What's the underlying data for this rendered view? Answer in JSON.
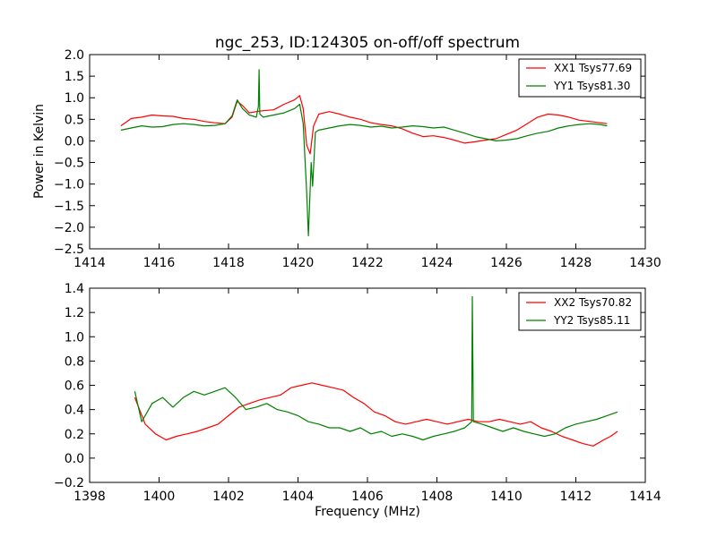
{
  "title": "ngc_253, ID:124305 on-off/off spectrum",
  "chart_data": [
    {
      "type": "line",
      "title": "ngc_253, ID:124305 on-off/off spectrum",
      "xlabel": "",
      "ylabel": "Power in Kelvin",
      "xlim": [
        1414,
        1430
      ],
      "ylim": [
        -2.5,
        2.0
      ],
      "xticks": [
        1414,
        1416,
        1418,
        1420,
        1422,
        1424,
        1426,
        1428,
        1430
      ],
      "yticks": [
        -2.5,
        -2.0,
        -1.5,
        -1.0,
        -0.5,
        0.0,
        0.5,
        1.0,
        1.5,
        2.0
      ],
      "ytick_labels": [
        "−2.5",
        "−2.0",
        "−1.5",
        "−1.0",
        "−0.5",
        "0.0",
        "0.5",
        "1.0",
        "1.5",
        "2.0"
      ],
      "legend": "top-right",
      "grid": false,
      "series": [
        {
          "name": "XX1 Tsys77.69",
          "color": "#ff0000",
          "points": [
            [
              1414.9,
              0.35
            ],
            [
              1415.2,
              0.52
            ],
            [
              1415.5,
              0.55
            ],
            [
              1415.8,
              0.6
            ],
            [
              1416.1,
              0.58
            ],
            [
              1416.4,
              0.57
            ],
            [
              1416.7,
              0.52
            ],
            [
              1417.0,
              0.5
            ],
            [
              1417.3,
              0.45
            ],
            [
              1417.6,
              0.42
            ],
            [
              1417.9,
              0.4
            ],
            [
              1418.1,
              0.55
            ],
            [
              1418.25,
              0.92
            ],
            [
              1418.4,
              0.82
            ],
            [
              1418.6,
              0.65
            ],
            [
              1418.8,
              0.68
            ],
            [
              1419.0,
              0.7
            ],
            [
              1419.3,
              0.72
            ],
            [
              1419.6,
              0.85
            ],
            [
              1419.9,
              0.95
            ],
            [
              1420.05,
              1.05
            ],
            [
              1420.15,
              0.75
            ],
            [
              1420.25,
              -0.1
            ],
            [
              1420.35,
              -0.3
            ],
            [
              1420.45,
              0.35
            ],
            [
              1420.6,
              0.62
            ],
            [
              1420.9,
              0.68
            ],
            [
              1421.2,
              0.62
            ],
            [
              1421.5,
              0.55
            ],
            [
              1421.8,
              0.5
            ],
            [
              1422.1,
              0.42
            ],
            [
              1422.4,
              0.38
            ],
            [
              1422.7,
              0.35
            ],
            [
              1423.0,
              0.28
            ],
            [
              1423.3,
              0.18
            ],
            [
              1423.6,
              0.1
            ],
            [
              1423.9,
              0.12
            ],
            [
              1424.2,
              0.08
            ],
            [
              1424.5,
              0.02
            ],
            [
              1424.8,
              -0.05
            ],
            [
              1425.1,
              -0.02
            ],
            [
              1425.4,
              0.02
            ],
            [
              1425.7,
              0.05
            ],
            [
              1426.0,
              0.15
            ],
            [
              1426.3,
              0.25
            ],
            [
              1426.6,
              0.4
            ],
            [
              1426.9,
              0.55
            ],
            [
              1427.2,
              0.62
            ],
            [
              1427.5,
              0.6
            ],
            [
              1427.8,
              0.55
            ],
            [
              1428.1,
              0.48
            ],
            [
              1428.4,
              0.45
            ],
            [
              1428.7,
              0.42
            ],
            [
              1428.9,
              0.4
            ]
          ]
        },
        {
          "name": "YY1 Tsys81.30",
          "color": "#008000",
          "points": [
            [
              1414.9,
              0.25
            ],
            [
              1415.2,
              0.3
            ],
            [
              1415.5,
              0.35
            ],
            [
              1415.8,
              0.32
            ],
            [
              1416.1,
              0.33
            ],
            [
              1416.4,
              0.38
            ],
            [
              1416.7,
              0.4
            ],
            [
              1417.0,
              0.38
            ],
            [
              1417.3,
              0.35
            ],
            [
              1417.6,
              0.36
            ],
            [
              1417.9,
              0.4
            ],
            [
              1418.1,
              0.58
            ],
            [
              1418.25,
              0.95
            ],
            [
              1418.4,
              0.75
            ],
            [
              1418.6,
              0.6
            ],
            [
              1418.8,
              0.55
            ],
            [
              1418.86,
              0.8
            ],
            [
              1418.88,
              1.65
            ],
            [
              1418.9,
              0.62
            ],
            [
              1419.0,
              0.55
            ],
            [
              1419.3,
              0.6
            ],
            [
              1419.6,
              0.65
            ],
            [
              1419.9,
              0.75
            ],
            [
              1420.05,
              0.85
            ],
            [
              1420.15,
              0.4
            ],
            [
              1420.25,
              -1.2
            ],
            [
              1420.3,
              -2.2
            ],
            [
              1420.38,
              -0.5
            ],
            [
              1420.42,
              -1.05
            ],
            [
              1420.5,
              0.2
            ],
            [
              1420.6,
              0.25
            ],
            [
              1420.9,
              0.3
            ],
            [
              1421.2,
              0.35
            ],
            [
              1421.5,
              0.38
            ],
            [
              1421.8,
              0.36
            ],
            [
              1422.1,
              0.32
            ],
            [
              1422.4,
              0.34
            ],
            [
              1422.7,
              0.3
            ],
            [
              1423.0,
              0.32
            ],
            [
              1423.3,
              0.35
            ],
            [
              1423.6,
              0.33
            ],
            [
              1423.9,
              0.3
            ],
            [
              1424.2,
              0.32
            ],
            [
              1424.5,
              0.25
            ],
            [
              1424.8,
              0.18
            ],
            [
              1425.1,
              0.1
            ],
            [
              1425.4,
              0.05
            ],
            [
              1425.7,
              0.0
            ],
            [
              1426.0,
              0.02
            ],
            [
              1426.3,
              0.05
            ],
            [
              1426.6,
              0.12
            ],
            [
              1426.9,
              0.18
            ],
            [
              1427.2,
              0.22
            ],
            [
              1427.5,
              0.3
            ],
            [
              1427.8,
              0.35
            ],
            [
              1428.1,
              0.38
            ],
            [
              1428.4,
              0.4
            ],
            [
              1428.7,
              0.38
            ],
            [
              1428.9,
              0.35
            ]
          ]
        }
      ]
    },
    {
      "type": "line",
      "title": "",
      "xlabel": "Frequency (MHz)",
      "ylabel": "",
      "xlim": [
        1398,
        1414
      ],
      "ylim": [
        -0.2,
        1.4
      ],
      "xticks": [
        1398,
        1400,
        1402,
        1404,
        1406,
        1408,
        1410,
        1412,
        1414
      ],
      "yticks": [
        -0.2,
        0.0,
        0.2,
        0.4,
        0.6,
        0.8,
        1.0,
        1.2,
        1.4
      ],
      "ytick_labels": [
        "−0.2",
        "0.0",
        "0.2",
        "0.4",
        "0.6",
        "0.8",
        "1.0",
        "1.2",
        "1.4"
      ],
      "legend": "top-right",
      "grid": false,
      "series": [
        {
          "name": "XX2 Tsys70.82",
          "color": "#ff0000",
          "points": [
            [
              1399.3,
              0.5
            ],
            [
              1399.6,
              0.28
            ],
            [
              1399.9,
              0.2
            ],
            [
              1400.2,
              0.15
            ],
            [
              1400.5,
              0.18
            ],
            [
              1400.8,
              0.2
            ],
            [
              1401.1,
              0.22
            ],
            [
              1401.4,
              0.25
            ],
            [
              1401.7,
              0.28
            ],
            [
              1402.0,
              0.35
            ],
            [
              1402.3,
              0.42
            ],
            [
              1402.6,
              0.45
            ],
            [
              1402.9,
              0.48
            ],
            [
              1403.2,
              0.5
            ],
            [
              1403.5,
              0.52
            ],
            [
              1403.8,
              0.58
            ],
            [
              1404.1,
              0.6
            ],
            [
              1404.4,
              0.62
            ],
            [
              1404.7,
              0.6
            ],
            [
              1405.0,
              0.58
            ],
            [
              1405.3,
              0.56
            ],
            [
              1405.6,
              0.5
            ],
            [
              1405.9,
              0.45
            ],
            [
              1406.2,
              0.38
            ],
            [
              1406.5,
              0.35
            ],
            [
              1406.8,
              0.3
            ],
            [
              1407.1,
              0.28
            ],
            [
              1407.4,
              0.3
            ],
            [
              1407.7,
              0.32
            ],
            [
              1408.0,
              0.3
            ],
            [
              1408.3,
              0.28
            ],
            [
              1408.6,
              0.3
            ],
            [
              1408.9,
              0.32
            ],
            [
              1409.2,
              0.3
            ],
            [
              1409.5,
              0.3
            ],
            [
              1409.8,
              0.32
            ],
            [
              1410.1,
              0.3
            ],
            [
              1410.4,
              0.28
            ],
            [
              1410.7,
              0.3
            ],
            [
              1411.0,
              0.25
            ],
            [
              1411.3,
              0.22
            ],
            [
              1411.6,
              0.18
            ],
            [
              1411.9,
              0.15
            ],
            [
              1412.2,
              0.12
            ],
            [
              1412.5,
              0.1
            ],
            [
              1412.8,
              0.15
            ],
            [
              1413.0,
              0.18
            ],
            [
              1413.2,
              0.22
            ]
          ]
        },
        {
          "name": "YY2 Tsys85.11",
          "color": "#008000",
          "points": [
            [
              1399.3,
              0.55
            ],
            [
              1399.5,
              0.3
            ],
            [
              1399.8,
              0.45
            ],
            [
              1400.1,
              0.5
            ],
            [
              1400.4,
              0.42
            ],
            [
              1400.7,
              0.5
            ],
            [
              1401.0,
              0.55
            ],
            [
              1401.3,
              0.52
            ],
            [
              1401.6,
              0.55
            ],
            [
              1401.9,
              0.58
            ],
            [
              1402.2,
              0.5
            ],
            [
              1402.5,
              0.4
            ],
            [
              1402.8,
              0.42
            ],
            [
              1403.1,
              0.45
            ],
            [
              1403.4,
              0.4
            ],
            [
              1403.7,
              0.38
            ],
            [
              1404.0,
              0.35
            ],
            [
              1404.3,
              0.3
            ],
            [
              1404.6,
              0.28
            ],
            [
              1404.9,
              0.25
            ],
            [
              1405.2,
              0.25
            ],
            [
              1405.5,
              0.22
            ],
            [
              1405.8,
              0.25
            ],
            [
              1406.1,
              0.2
            ],
            [
              1406.4,
              0.22
            ],
            [
              1406.7,
              0.18
            ],
            [
              1407.0,
              0.2
            ],
            [
              1407.3,
              0.18
            ],
            [
              1407.6,
              0.15
            ],
            [
              1407.9,
              0.18
            ],
            [
              1408.2,
              0.2
            ],
            [
              1408.5,
              0.22
            ],
            [
              1408.8,
              0.25
            ],
            [
              1409.0,
              0.3
            ],
            [
              1409.02,
              1.33
            ],
            [
              1409.05,
              0.3
            ],
            [
              1409.3,
              0.28
            ],
            [
              1409.6,
              0.25
            ],
            [
              1409.9,
              0.22
            ],
            [
              1410.2,
              0.25
            ],
            [
              1410.5,
              0.22
            ],
            [
              1410.8,
              0.2
            ],
            [
              1411.1,
              0.18
            ],
            [
              1411.4,
              0.2
            ],
            [
              1411.7,
              0.25
            ],
            [
              1412.0,
              0.28
            ],
            [
              1412.3,
              0.3
            ],
            [
              1412.6,
              0.32
            ],
            [
              1412.9,
              0.35
            ],
            [
              1413.2,
              0.38
            ]
          ]
        }
      ]
    }
  ]
}
